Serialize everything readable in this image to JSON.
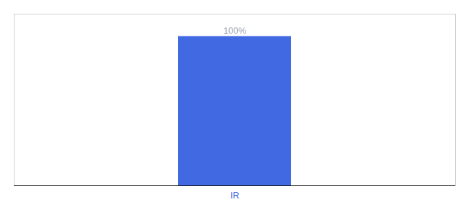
{
  "chart_data": {
    "type": "bar",
    "categories": [
      "IR"
    ],
    "values": [
      100
    ],
    "value_labels": [
      "100%"
    ],
    "color": "#4169e1",
    "ylim": [
      0,
      115
    ],
    "data_labels": true,
    "tick_labels": "x"
  }
}
